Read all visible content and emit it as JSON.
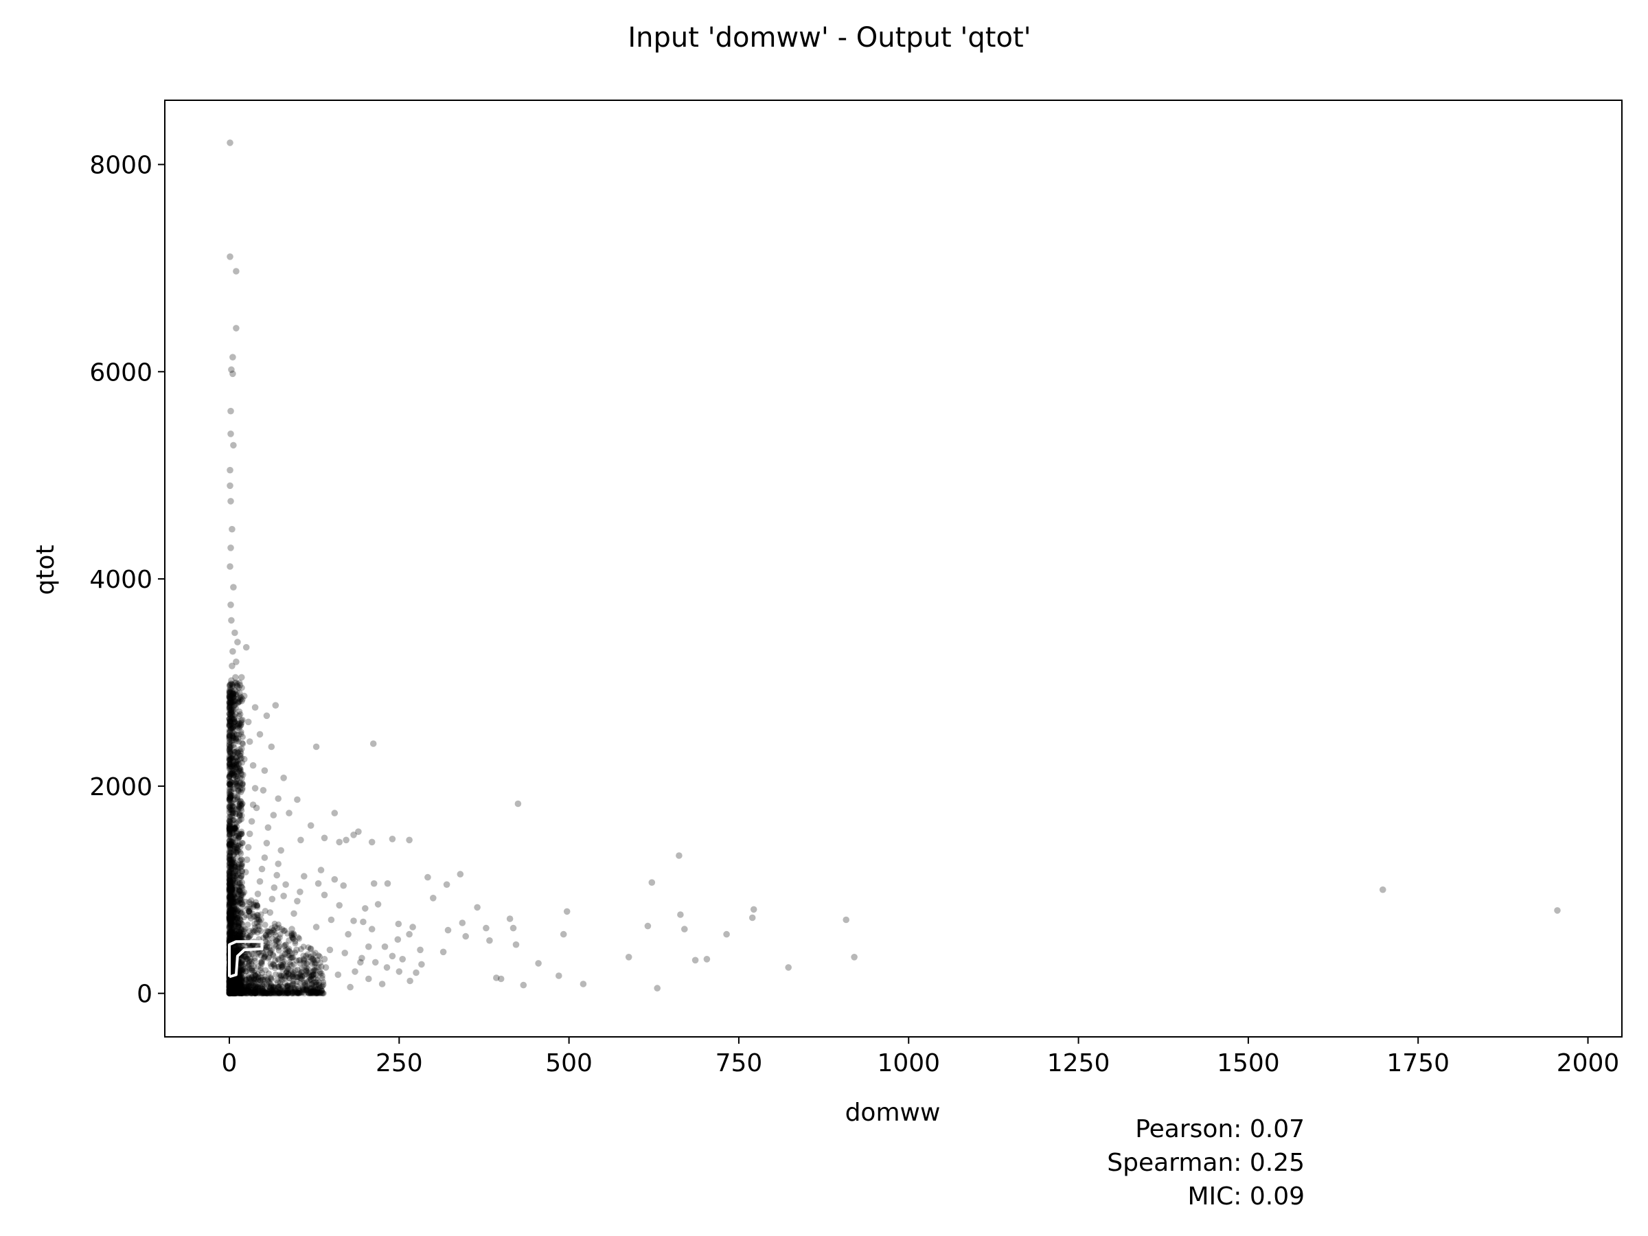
{
  "chart_data": {
    "type": "scatter",
    "title": "Input 'domww' - Output 'qtot'",
    "xlabel": "domww",
    "ylabel": "qtot",
    "xlim": [
      -95,
      2050
    ],
    "ylim": [
      -420,
      8620
    ],
    "x_ticks": [
      0,
      250,
      500,
      750,
      1000,
      1250,
      1500,
      1750,
      2000
    ],
    "y_ticks": [
      0,
      2000,
      4000,
      6000,
      8000
    ],
    "grid": false,
    "marker_color": "#000000",
    "marker_opacity": 0.28,
    "contour_color": "#ffffff",
    "points": [
      [
        1,
        8210
      ],
      [
        1,
        7110
      ],
      [
        10,
        6970
      ],
      [
        10,
        6420
      ],
      [
        5,
        6140
      ],
      [
        5,
        5980
      ],
      [
        3,
        6020
      ],
      [
        2,
        5620
      ],
      [
        2,
        5400
      ],
      [
        6,
        5290
      ],
      [
        1,
        5050
      ],
      [
        1,
        4900
      ],
      [
        2,
        4750
      ],
      [
        4,
        4480
      ],
      [
        2,
        4300
      ],
      [
        1,
        4120
      ],
      [
        6,
        3920
      ],
      [
        2,
        3750
      ],
      [
        3,
        3600
      ],
      [
        8,
        3480
      ],
      [
        12,
        3390
      ],
      [
        25,
        3340
      ],
      [
        10,
        3200
      ],
      [
        18,
        3050
      ],
      [
        15,
        2900
      ],
      [
        22,
        2870
      ],
      [
        38,
        2760
      ],
      [
        55,
        2680
      ],
      [
        68,
        2780
      ],
      [
        28,
        2620
      ],
      [
        45,
        2500
      ],
      [
        30,
        2430
      ],
      [
        62,
        2380
      ],
      [
        18,
        2360
      ],
      [
        128,
        2380
      ],
      [
        212,
        2410
      ],
      [
        35,
        2200
      ],
      [
        52,
        2150
      ],
      [
        80,
        2080
      ],
      [
        72,
        1880
      ],
      [
        100,
        1870
      ],
      [
        50,
        1960
      ],
      [
        40,
        1790
      ],
      [
        65,
        1720
      ],
      [
        88,
        1740
      ],
      [
        155,
        1740
      ],
      [
        172,
        1480
      ],
      [
        190,
        1560
      ],
      [
        240,
        1490
      ],
      [
        265,
        1480
      ],
      [
        183,
        1530
      ],
      [
        210,
        1460
      ],
      [
        120,
        1620
      ],
      [
        140,
        1500
      ],
      [
        162,
        1460
      ],
      [
        105,
        1480
      ],
      [
        425,
        1830
      ],
      [
        662,
        1330
      ],
      [
        1698,
        1000
      ],
      [
        1955,
        800
      ],
      [
        908,
        710
      ],
      [
        920,
        350
      ],
      [
        772,
        810
      ],
      [
        770,
        730
      ],
      [
        732,
        570
      ],
      [
        664,
        760
      ],
      [
        670,
        620
      ],
      [
        622,
        1070
      ],
      [
        616,
        650
      ],
      [
        686,
        320
      ],
      [
        703,
        330
      ],
      [
        588,
        350
      ],
      [
        630,
        50
      ],
      [
        823,
        250
      ],
      [
        497,
        790
      ],
      [
        492,
        570
      ],
      [
        485,
        170
      ],
      [
        521,
        90
      ],
      [
        455,
        290
      ],
      [
        433,
        80
      ],
      [
        422,
        470
      ],
      [
        418,
        630
      ],
      [
        413,
        720
      ],
      [
        400,
        140
      ],
      [
        393,
        150
      ],
      [
        383,
        510
      ],
      [
        378,
        630
      ],
      [
        365,
        830
      ],
      [
        343,
        680
      ],
      [
        348,
        550
      ],
      [
        340,
        1150
      ],
      [
        320,
        1050
      ],
      [
        322,
        610
      ],
      [
        315,
        400
      ],
      [
        300,
        920
      ],
      [
        292,
        1120
      ],
      [
        283,
        280
      ],
      [
        281,
        420
      ],
      [
        270,
        640
      ],
      [
        265,
        570
      ],
      [
        266,
        120
      ],
      [
        249,
        670
      ],
      [
        248,
        520
      ],
      [
        240,
        360
      ],
      [
        233,
        1060
      ],
      [
        229,
        450
      ],
      [
        219,
        860
      ],
      [
        213,
        1060
      ],
      [
        210,
        620
      ],
      [
        205,
        450
      ],
      [
        200,
        820
      ],
      [
        197,
        690
      ],
      [
        193,
        300
      ],
      [
        183,
        700
      ],
      [
        175,
        570
      ],
      [
        168,
        1040
      ],
      [
        162,
        850
      ],
      [
        155,
        1100
      ],
      [
        150,
        710
      ],
      [
        148,
        420
      ],
      [
        140,
        950
      ],
      [
        135,
        1190
      ],
      [
        131,
        1060
      ],
      [
        128,
        640
      ],
      [
        120,
        430
      ],
      [
        116,
        300
      ],
      [
        110,
        1130
      ],
      [
        104,
        980
      ],
      [
        100,
        890
      ],
      [
        95,
        770
      ],
      [
        92,
        620
      ],
      [
        88,
        510
      ],
      [
        83,
        1050
      ],
      [
        80,
        940
      ],
      [
        76,
        1380
      ],
      [
        72,
        1250
      ],
      [
        70,
        1140
      ],
      [
        66,
        1020
      ],
      [
        63,
        910
      ],
      [
        60,
        780
      ],
      [
        57,
        1600
      ],
      [
        55,
        1450
      ],
      [
        52,
        1310
      ],
      [
        48,
        1200
      ],
      [
        45,
        1080
      ],
      [
        42,
        960
      ],
      [
        40,
        850
      ],
      [
        38,
        1980
      ],
      [
        35,
        1820
      ],
      [
        33,
        1660
      ],
      [
        30,
        1540
      ],
      [
        28,
        1410
      ],
      [
        26,
        1290
      ],
      [
        24,
        1170
      ],
      [
        22,
        2260
      ],
      [
        20,
        2110
      ],
      [
        19,
        1980
      ],
      [
        17,
        1850
      ],
      [
        15,
        1720
      ],
      [
        14,
        2600
      ],
      [
        13,
        2460
      ],
      [
        12,
        2320
      ],
      [
        11,
        2180
      ],
      [
        9,
        3050
      ],
      [
        8,
        2920
      ],
      [
        7,
        2780
      ],
      [
        6,
        2650
      ],
      [
        5,
        3300
      ],
      [
        4,
        3160
      ],
      [
        3,
        3020
      ],
      [
        185,
        210
      ],
      [
        160,
        180
      ],
      [
        142,
        250
      ],
      [
        118,
        160
      ],
      [
        97,
        220
      ],
      [
        78,
        130
      ],
      [
        62,
        260
      ],
      [
        47,
        150
      ],
      [
        33,
        240
      ],
      [
        205,
        140
      ],
      [
        225,
        90
      ],
      [
        250,
        210
      ],
      [
        178,
        60
      ],
      [
        132,
        80
      ],
      [
        108,
        40
      ],
      [
        86,
        60
      ],
      [
        66,
        30
      ],
      [
        140,
        330
      ],
      [
        170,
        390
      ],
      [
        195,
        340
      ],
      [
        215,
        300
      ],
      [
        232,
        250
      ],
      [
        255,
        330
      ],
      [
        275,
        200
      ],
      [
        120,
        350
      ],
      [
        99,
        420
      ],
      [
        82,
        380
      ],
      [
        67,
        470
      ],
      [
        54,
        560
      ],
      [
        44,
        650
      ],
      [
        36,
        740
      ]
    ]
  }
}
